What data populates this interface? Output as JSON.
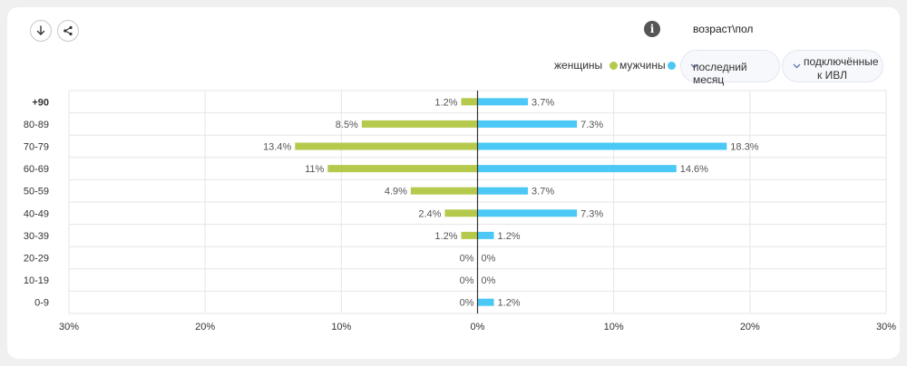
{
  "toolbar": {
    "download_icon": "download-icon",
    "share_icon": "share-icon"
  },
  "header": {
    "info_icon": "info-icon",
    "info_glyph": "i",
    "title": "возраст\\пол"
  },
  "legend": {
    "women_label": "женщины",
    "men_label": "мужчины",
    "women_color": "#b5c94c",
    "men_color": "#4bc8f5"
  },
  "filters": {
    "period": "последний месяц",
    "ventilation_line1": "подключённые",
    "ventilation_line2": "к ИВЛ"
  },
  "chart_data": {
    "type": "bar",
    "orientation": "horizontal-diverging",
    "categories": [
      "+90",
      "80-89",
      "70-79",
      "60-69",
      "50-59",
      "40-49",
      "30-39",
      "20-29",
      "10-19",
      "0-9"
    ],
    "series": [
      {
        "name": "женщины",
        "values": [
          1.2,
          8.5,
          13.4,
          11,
          4.9,
          2.4,
          1.2,
          0,
          0,
          0
        ],
        "labels": [
          "1.2%",
          "8.5%",
          "13.4%",
          "11%",
          "4.9%",
          "2.4%",
          "1.2%",
          "0%",
          "0%",
          "0%"
        ]
      },
      {
        "name": "мужчины",
        "values": [
          3.7,
          7.3,
          18.3,
          14.6,
          3.7,
          7.3,
          1.2,
          0,
          0,
          1.2
        ],
        "labels": [
          "3.7%",
          "7.3%",
          "18.3%",
          "14.6%",
          "3.7%",
          "7.3%",
          "1.2%",
          "0%",
          "0%",
          "1.2%"
        ]
      }
    ],
    "x_ticks": [
      -30,
      -20,
      -10,
      0,
      10,
      20,
      30
    ],
    "x_tick_labels": [
      "30%",
      "20%",
      "10%",
      "0%",
      "10%",
      "20%",
      "30%"
    ],
    "xlim": [
      -30,
      30
    ],
    "grid": true,
    "legend_position": "top-right"
  }
}
